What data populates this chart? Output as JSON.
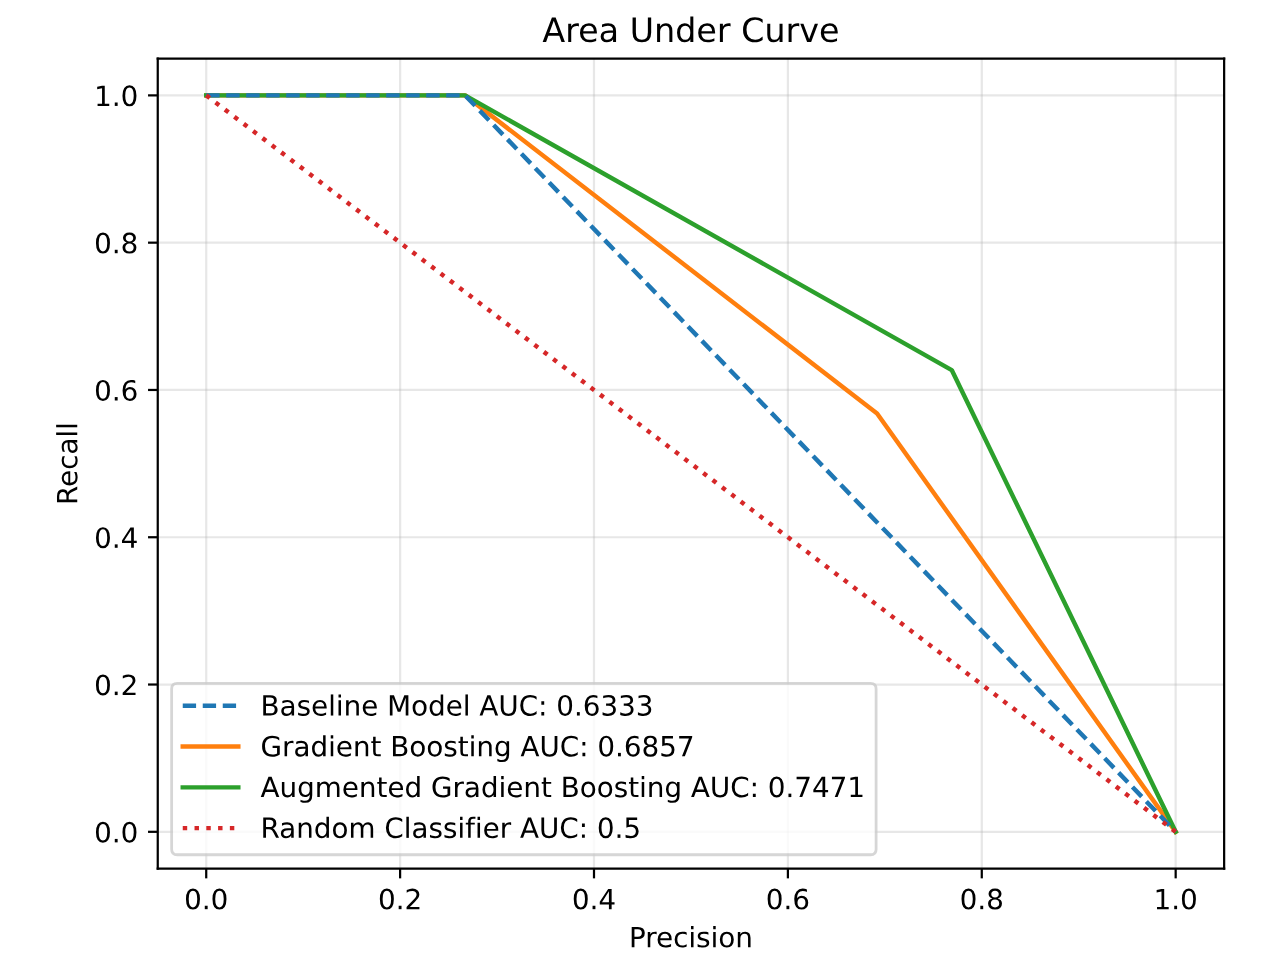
{
  "chart_data": {
    "type": "line",
    "title": "Area Under Curve",
    "xlabel": "Precision",
    "ylabel": "Recall",
    "xlim": [
      -0.05,
      1.05
    ],
    "ylim": [
      -0.05,
      1.05
    ],
    "xticks": [
      {
        "value": 0,
        "label": "0.0"
      },
      {
        "value": 0.2,
        "label": "0.2"
      },
      {
        "value": 0.4,
        "label": "0.4"
      },
      {
        "value": 0.6,
        "label": "0.6"
      },
      {
        "value": 0.8,
        "label": "0.8"
      },
      {
        "value": 1,
        "label": "1.0"
      }
    ],
    "yticks": [
      {
        "value": 0,
        "label": "0.0"
      },
      {
        "value": 0.2,
        "label": "0.2"
      },
      {
        "value": 0.4,
        "label": "0.4"
      },
      {
        "value": 0.6,
        "label": "0.6"
      },
      {
        "value": 0.8,
        "label": "0.8"
      },
      {
        "value": 1,
        "label": "1.0"
      }
    ],
    "grid": true,
    "legend": "bottom left",
    "series": [
      {
        "name": "Baseline Model AUC: 0.6333",
        "color": "#1f77b4",
        "line_style": "dashed",
        "x": [
          0,
          0.267,
          1
        ],
        "values": [
          1,
          1,
          0
        ]
      },
      {
        "name": "Gradient Boosting AUC: 0.6857",
        "color": "#ff7f0e",
        "line_style": "solid",
        "x": [
          0,
          0.267,
          0.692,
          1
        ],
        "values": [
          1,
          1,
          0.568,
          0
        ]
      },
      {
        "name": "Augmented Gradient Boosting AUC: 0.7471",
        "color": "#2ca02c",
        "line_style": "solid",
        "x": [
          0,
          0.267,
          0.769,
          1
        ],
        "values": [
          1,
          1,
          0.627,
          0
        ]
      },
      {
        "name": "Random Classifier AUC: 0.5",
        "color": "#d62728",
        "line_style": "dotted",
        "x": [
          0,
          1
        ],
        "values": [
          1,
          0
        ]
      }
    ]
  }
}
